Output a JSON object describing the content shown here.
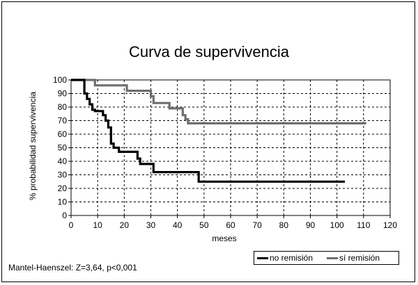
{
  "chart_data": {
    "type": "line",
    "step": true,
    "title": "Curva de supervivencia",
    "xlabel": "meses",
    "ylabel": "% probabilidad supervivencia",
    "xlim": [
      0,
      120
    ],
    "ylim": [
      0,
      100
    ],
    "xticks": [
      "0",
      "10",
      "20",
      "30",
      "40",
      "50",
      "60",
      "70",
      "80",
      "90",
      "100",
      "110",
      "120"
    ],
    "yticks": [
      "0",
      "10",
      "20",
      "30",
      "40",
      "50",
      "60",
      "70",
      "80",
      "90",
      "100"
    ],
    "grid": true,
    "legend_position": "bottom-right",
    "series": [
      {
        "name": "no remisión",
        "color": "#000000",
        "x": [
          0,
          4,
          5,
          6,
          7,
          8,
          9,
          12,
          13,
          14,
          15,
          16,
          18,
          24,
          25,
          26,
          30,
          31,
          47,
          48,
          103
        ],
        "y": [
          100,
          100,
          90,
          86,
          82,
          78,
          77,
          74,
          70,
          65,
          53,
          50,
          47,
          47,
          42,
          38,
          38,
          32,
          32,
          25,
          25
        ]
      },
      {
        "name": "sí remisión",
        "color": "#6e6e6e",
        "x": [
          0,
          8,
          9,
          20,
          21,
          30,
          31,
          37,
          42,
          43,
          44,
          111
        ],
        "y": [
          100,
          100,
          96,
          96,
          92,
          88,
          83,
          79,
          74,
          71,
          68,
          68
        ]
      }
    ]
  },
  "stats_text": "Mantel-Haenszel: Z=3,64, p<0,001"
}
